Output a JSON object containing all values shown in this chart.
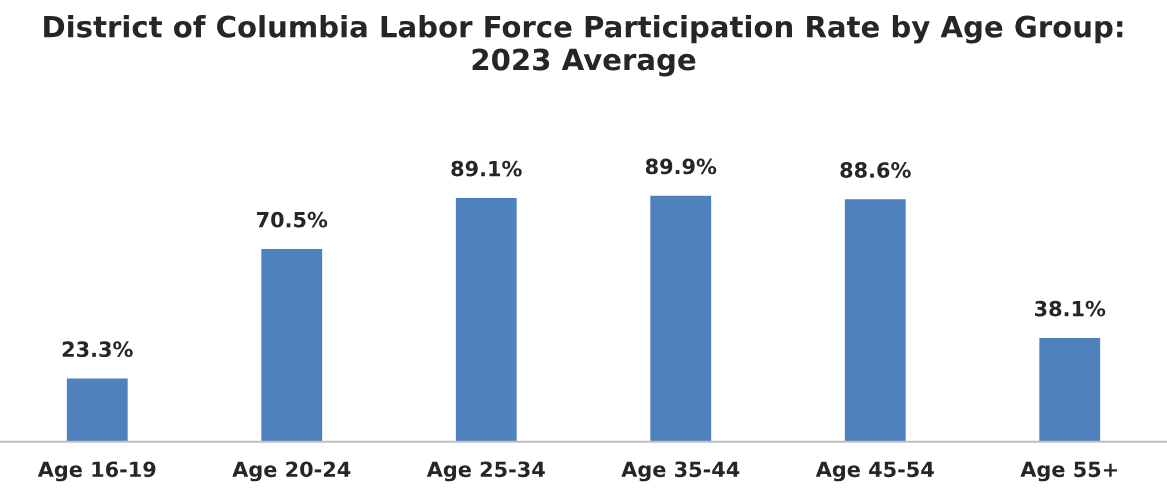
{
  "chart_data": {
    "type": "bar",
    "title": "District of Columbia Labor Force Participation Rate by Age Group: 2023 Average",
    "categories": [
      "Age 16-19",
      "Age 20-24",
      "Age 25-34",
      "Age 35-44",
      "Age 45-54",
      "Age 55+"
    ],
    "values": [
      23.3,
      70.5,
      89.1,
      89.9,
      88.6,
      38.1
    ],
    "value_labels": [
      "23.3%",
      "70.5%",
      "89.1%",
      "89.9%",
      "88.6%",
      "38.1%"
    ],
    "color": "#4f81bd",
    "grid": false,
    "legend": false
  }
}
